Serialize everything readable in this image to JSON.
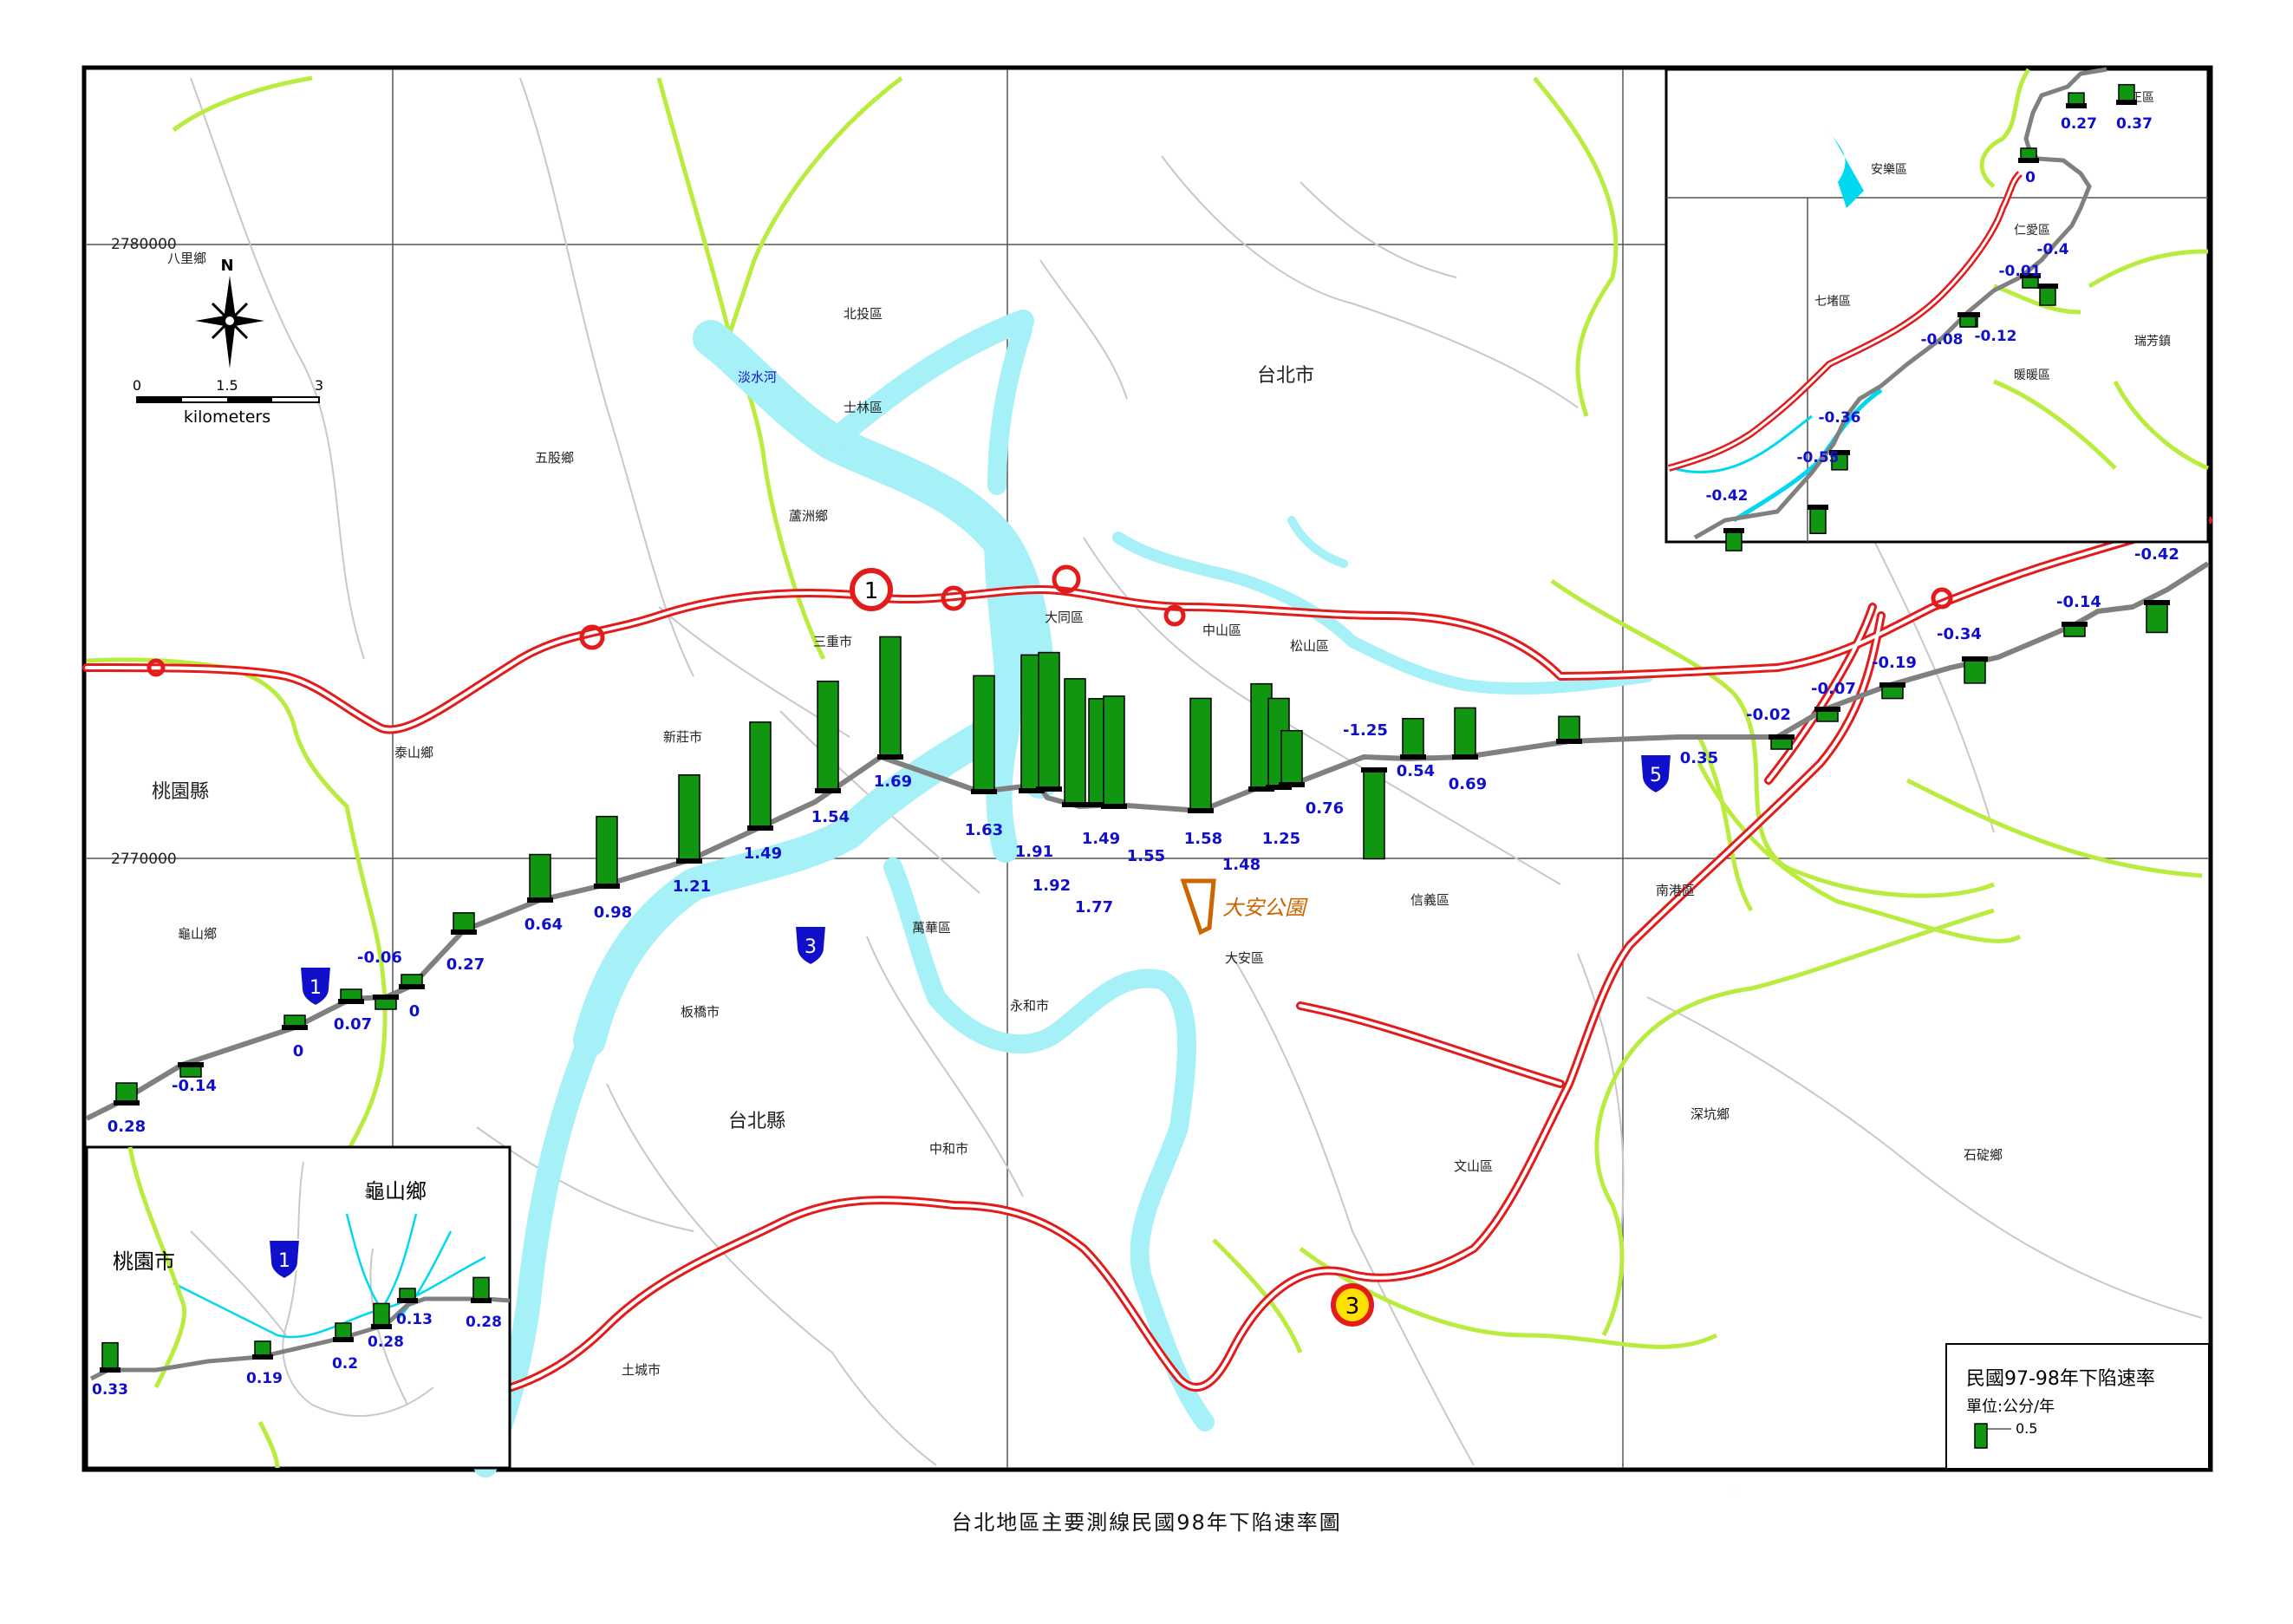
{
  "caption": "台北地區主要測線民國98年下陷速率圖",
  "colors": {
    "river": "#a6f0f7",
    "boundary_green": "#b9ec3f",
    "road_red": "#e31b1b",
    "bar_green": "#119611",
    "value_blue": "#1010cc",
    "leveling_line": "#808080",
    "park": "#cc6600"
  },
  "grid_labels": {
    "northing_top": "2780000",
    "northing_mid": "2770000"
  },
  "scale_bar": {
    "ticks": [
      "0",
      "1.5",
      "3"
    ],
    "unit": "kilometers"
  },
  "north_arrow": "N",
  "legend": {
    "title": "民國97-98年下陷速率",
    "unit": "單位:公分/年",
    "sample_value": "0.5"
  },
  "region_labels": {
    "taipei_city": "台北市",
    "taipei_county": "台北縣",
    "taoyuan_county": "桃園縣",
    "beitou": "北投區",
    "shilin": "士林區",
    "luzhou": "蘆洲鄉",
    "wugu": "五股鄉",
    "sanchong": "三重市",
    "datong": "大同區",
    "zhongshan": "中山區",
    "songshan": "松山區",
    "xinzhuang": "新莊市",
    "taishan": "泰山鄉",
    "guishan": "龜山鄉",
    "banqiao": "板橋市",
    "wanhua": "萬華區",
    "yonghe": "永和市",
    "daan": "大安區",
    "xinyi": "信義區",
    "nangang": "南港區",
    "zhonghe": "中和市",
    "wenshan": "文山區",
    "shenkeng": "深坑鄉",
    "shiding": "石碇鄉",
    "tucheng": "土城市",
    "bali": "八里鄉",
    "tamsui_river": "淡水河",
    "daan_park": "大安公園"
  },
  "inset_top": {
    "labels": {
      "zhongzheng": "中正區",
      "anle": "安樂區",
      "renai": "仁愛區",
      "qidu": "七堵區",
      "nuannuan": "暖暖區",
      "ruifang": "瑞芳鎮"
    },
    "bars": [
      {
        "value": "0.37"
      },
      {
        "value": "0.27"
      },
      {
        "value": "0"
      },
      {
        "value": "-0.4"
      },
      {
        "value": "-0.01"
      },
      {
        "value": "-0.12"
      },
      {
        "value": "-0.08"
      },
      {
        "value": "-0.36"
      },
      {
        "value": "-0.55"
      },
      {
        "value": "-0.42"
      }
    ]
  },
  "inset_bottom": {
    "labels": {
      "guishan": "龜山鄉",
      "taoyuan": "桃園市"
    },
    "bars": [
      {
        "value": "0.33"
      },
      {
        "value": "0.19"
      },
      {
        "value": "0.2"
      },
      {
        "value": "0.28"
      },
      {
        "value": "0.13"
      },
      {
        "value": "0.28"
      }
    ]
  },
  "main_bars": [
    {
      "value": "0.28"
    },
    {
      "value": "-0.14"
    },
    {
      "value": "0"
    },
    {
      "value": "0.07"
    },
    {
      "value": "-0.06"
    },
    {
      "value": "0"
    },
    {
      "value": "0.27"
    },
    {
      "value": "0.64"
    },
    {
      "value": "0.98"
    },
    {
      "value": "1.21"
    },
    {
      "value": "1.49"
    },
    {
      "value": "1.54"
    },
    {
      "value": "1.69"
    },
    {
      "value": "1.63"
    },
    {
      "value": "1.91"
    },
    {
      "value": "1.92"
    },
    {
      "value": "1.77"
    },
    {
      "value": "1.49"
    },
    {
      "value": "1.55"
    },
    {
      "value": "1.58"
    },
    {
      "value": "1.48"
    },
    {
      "value": "1.25"
    },
    {
      "value": "0.76"
    },
    {
      "value": "-1.25"
    },
    {
      "value": "0.54"
    },
    {
      "value": "0.69"
    },
    {
      "value": "0.35"
    },
    {
      "value": "-0.02"
    },
    {
      "value": "-0.07"
    },
    {
      "value": "-0.19"
    },
    {
      "value": "-0.34"
    },
    {
      "value": "-0.14"
    },
    {
      "value": "-0.42"
    }
  ],
  "highway_shields": {
    "fwy1": "1",
    "fwy3": "3",
    "prov1": "1",
    "prov3": "3",
    "prov5": "5",
    "inset_prov1": "1"
  }
}
